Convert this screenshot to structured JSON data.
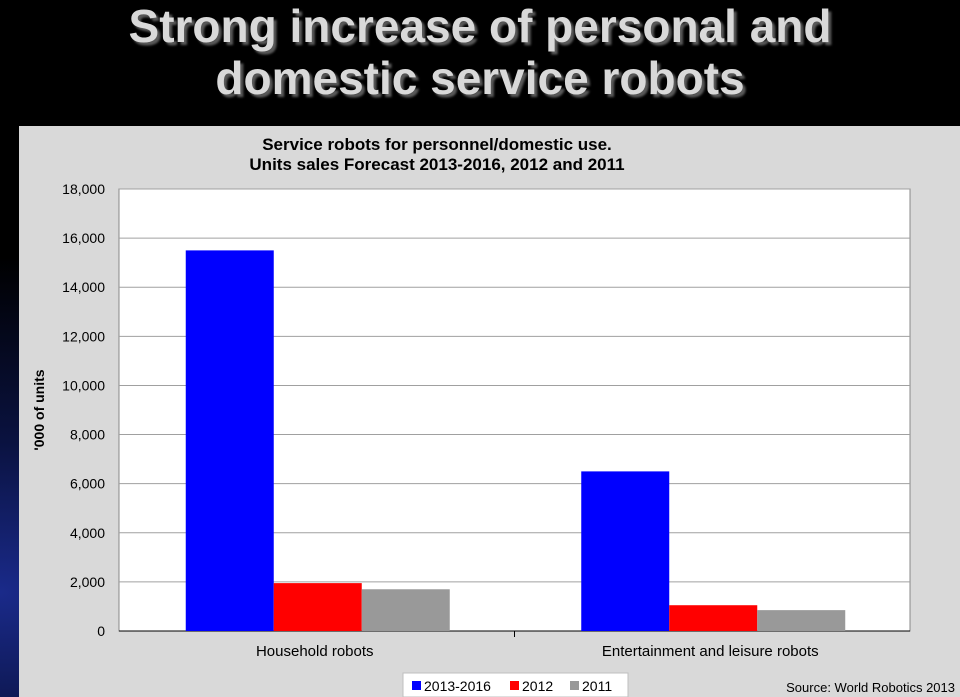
{
  "slide": {
    "title_line1": "Strong increase of personal and",
    "title_line2": "domestic service robots"
  },
  "chart_data": {
    "type": "bar",
    "title": "Service robots for personnel/domestic use.",
    "subtitle": "Units sales Forecast 2013-2016, 2012 and 2011",
    "ylabel": "'000 of units",
    "xlabel": "",
    "ylim": [
      0,
      18000
    ],
    "yticks": [
      "0",
      "2,000",
      "4,000",
      "6,000",
      "8,000",
      "10,000",
      "12,000",
      "14,000",
      "16,000",
      "18,000"
    ],
    "categories": [
      "Household robots",
      "Entertainment and leisure robots"
    ],
    "series": [
      {
        "name": "2013-2016",
        "values": [
          15500,
          6500
        ],
        "color": "#0000ff"
      },
      {
        "name": "2012",
        "values": [
          1950,
          1050
        ],
        "color": "#ff0000"
      },
      {
        "name": "2011",
        "values": [
          1700,
          850
        ],
        "color": "#999999"
      }
    ],
    "grid": true,
    "legend_position": "bottom-center",
    "source": "Source: World Robotics 2013"
  }
}
